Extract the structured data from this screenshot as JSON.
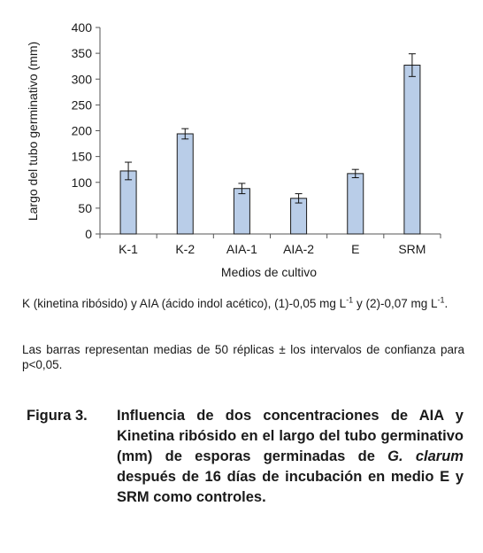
{
  "chart_data": {
    "type": "bar",
    "categories": [
      "K-1",
      "K-2",
      "AIA-1",
      "AIA-2",
      "E",
      "SRM"
    ],
    "values": [
      122,
      194,
      88,
      69,
      117,
      327
    ],
    "error": [
      17,
      10,
      10,
      9,
      8,
      22
    ],
    "xlabel": "Medios de cultivo",
    "ylabel": "Largo del tubo germinativo (mm)",
    "ylim": [
      0,
      400
    ],
    "yticks": [
      0,
      50,
      100,
      150,
      200,
      250,
      300,
      350,
      400
    ],
    "bar_color": "#b9cde8",
    "bar_edge": "#1a1a1a",
    "grid": false
  },
  "notes": {
    "note1": {
      "a": "K (kinetina ribósido) y AIA (ácido indol acético), (1)-0,05 mg L",
      "a_sup": "-1",
      "b": " y (2)-0,07 mg L",
      "b_sup": "-1",
      "c": "."
    },
    "note2": "Las barras representan medias de 50 réplicas ± los intervalos de confianza para p<0,05."
  },
  "caption": {
    "label": "Figura 3.",
    "text_before": "Influencia de dos concentraciones de AIA y Kinetina ribósido en el largo del tubo germinativo (mm) de esporas germinadas de ",
    "species": "G. clarum",
    "text_after": " después de 16 días de incubación en medio E y SRM como controles."
  }
}
